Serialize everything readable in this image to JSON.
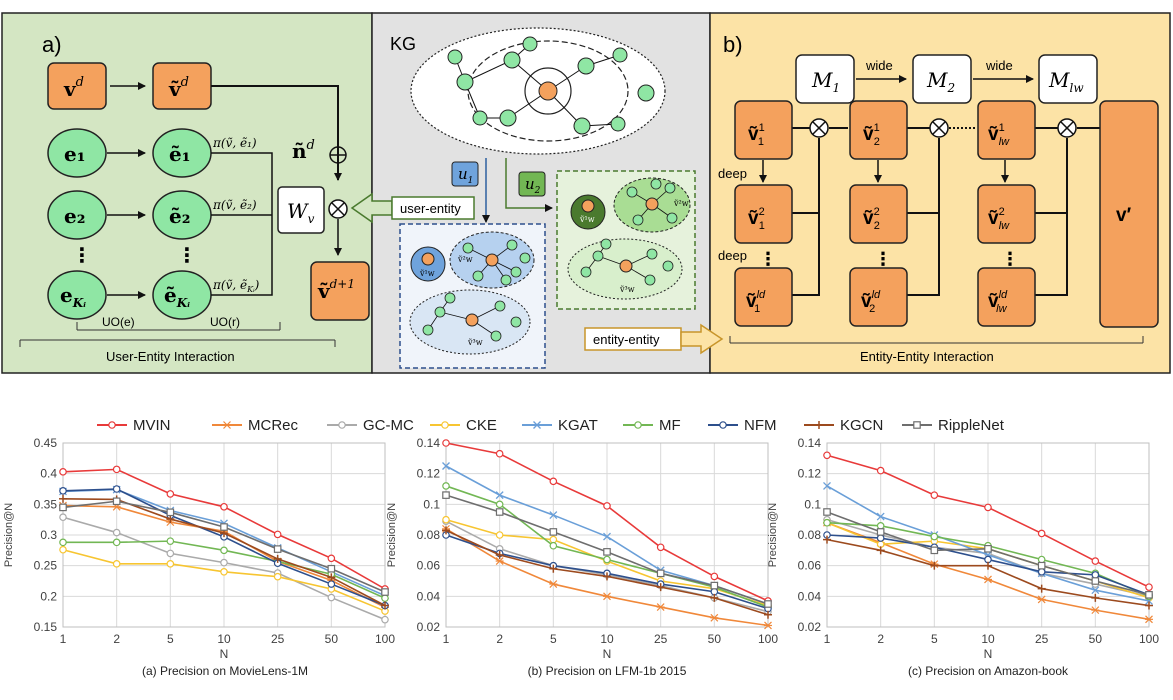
{
  "colors": {
    "MVIN": "#e83a3a",
    "MCRec": "#f0883a",
    "GC-MC": "#aaaaaa",
    "CKE": "#f7c531",
    "KGAT": "#6a9fd8",
    "MF": "#72b754",
    "NFM": "#2d4f8c",
    "KGCN": "#9c4a1e",
    "RippleNet": "#6e6e6e",
    "panel_a_bg": "#d4e6c3",
    "panel_kg_bg": "#e2e2e2",
    "panel_b_bg": "#fce3a6",
    "orange_node": "#f4a15d",
    "green_node": "#8fe6a4",
    "blue_box": "#6fa3dc"
  },
  "diagram": {
    "panel_a": {
      "label": "a)",
      "nodes": {
        "vd": "v",
        "vd_sup": "d",
        "vt": "ṽ",
        "vt_sup": "d",
        "e1": "e₁",
        "e2": "e₂",
        "eK": "e",
        "eK_sub": "Kᵢ",
        "et1": "ẽ₁",
        "et2": "ẽ₂",
        "etK": "ẽ",
        "etK_sub": "Kᵢ",
        "out": "ṽ",
        "out_sup": "d+1",
        "wv": "W",
        "wv_sub": "v",
        "nd": "ñ",
        "nd_sup": "d"
      },
      "pi1": "π(ṽ, ẽ₁)",
      "pi2": "π(ṽ, ẽ₂)",
      "piK": "π(ṽ, ẽ",
      "piK_sub": "Kᵢ",
      "piK_end": ")",
      "uo_e": "UO(e)",
      "uo_r": "UO(r)",
      "footer": "User-Entity Interaction"
    },
    "panel_kg": {
      "label": "KG",
      "u1": "u",
      "u1_sub": "1",
      "u2": "u",
      "u2_sub": "2",
      "user_entity": "user-entity",
      "entity_entity": "entity-entity",
      "w1": "ṽ¹w",
      "w2": "ṽ²w",
      "w3": "ṽ³w"
    },
    "panel_b": {
      "label": "b)",
      "m1": "M",
      "m1_sub": "1",
      "m2": "M",
      "m2_sub": "2",
      "ml": "M",
      "ml_sub": "lw",
      "wide1": "wide",
      "wide2": "wide",
      "deep1": "deep",
      "deep2": "deep",
      "v11": "ṽ",
      "v11_sup": "1",
      "v11_sub": "1",
      "v21": "ṽ",
      "v21_sup": "1",
      "v21_sub": "2",
      "vl1": "ṽ",
      "vl1_sup": "1",
      "vl1_sub": "lw",
      "v12": "ṽ",
      "v12_sup": "2",
      "v12_sub": "1",
      "v22": "ṽ",
      "v22_sup": "2",
      "v22_sub": "2",
      "vl2": "ṽ",
      "vl2_sup": "2",
      "vl2_sub": "lw",
      "v1d": "ṽ",
      "v1d_sup": "ld",
      "v1d_sub": "1",
      "v2d": "ṽ",
      "v2d_sup": "ld",
      "v2d_sub": "2",
      "vld": "ṽ",
      "vld_sup": "ld",
      "vld_sub": "lw",
      "vprime": "v′",
      "footer": "Entity-Entity Interaction"
    }
  },
  "legend": [
    "MVIN",
    "MCRec",
    "GC-MC",
    "CKE",
    "KGAT",
    "MF",
    "NFM",
    "KGCN",
    "RippleNet"
  ],
  "chart_data": [
    {
      "type": "line",
      "title": "(a) Precision on MovieLens-1M",
      "xlabel": "N",
      "ylabel": "Precision@N",
      "categories": [
        "1",
        "2",
        "5",
        "10",
        "25",
        "50",
        "100"
      ],
      "ylim": [
        0.15,
        0.45
      ],
      "yticks": [
        "0.15",
        "0.2",
        "0.25",
        "0.3",
        "0.35",
        "0.4",
        "0.45"
      ],
      "grid": true,
      "series": [
        {
          "name": "MVIN",
          "values": [
            0.403,
            0.407,
            0.367,
            0.346,
            0.301,
            0.262,
            0.212
          ]
        },
        {
          "name": "MCRec",
          "values": [
            0.348,
            0.346,
            0.321,
            0.306,
            0.257,
            0.226,
            0.182
          ]
        },
        {
          "name": "GC-MC",
          "values": [
            0.329,
            0.304,
            0.27,
            0.255,
            0.238,
            0.198,
            0.162
          ]
        },
        {
          "name": "CKE",
          "values": [
            0.276,
            0.253,
            0.253,
            0.24,
            0.232,
            0.212,
            0.176
          ]
        },
        {
          "name": "KGAT",
          "values": [
            0.371,
            0.374,
            0.34,
            0.319,
            0.279,
            0.24,
            0.201
          ]
        },
        {
          "name": "MF",
          "values": [
            0.288,
            0.288,
            0.29,
            0.275,
            0.257,
            0.236,
            0.197
          ]
        },
        {
          "name": "NFM",
          "values": [
            0.372,
            0.375,
            0.332,
            0.297,
            0.254,
            0.22,
            0.185
          ]
        },
        {
          "name": "KGCN",
          "values": [
            0.359,
            0.358,
            0.326,
            0.303,
            0.261,
            0.231,
            0.185
          ]
        },
        {
          "name": "RippleNet",
          "values": [
            0.345,
            0.355,
            0.337,
            0.313,
            0.277,
            0.245,
            0.207
          ]
        }
      ]
    },
    {
      "type": "line",
      "title": "(b) Precision on LFM-1b 2015",
      "xlabel": "N",
      "ylabel": "Precision@N",
      "categories": [
        "1",
        "2",
        "5",
        "10",
        "25",
        "50",
        "100"
      ],
      "ylim": [
        0.02,
        0.14
      ],
      "yticks": [
        "0.02",
        "0.04",
        "0.06",
        "0.08",
        "0.1",
        "0.12",
        "0.14"
      ],
      "grid": true,
      "series": [
        {
          "name": "MVIN",
          "values": [
            0.14,
            0.133,
            0.115,
            0.099,
            0.072,
            0.053,
            0.037
          ]
        },
        {
          "name": "MCRec",
          "values": [
            0.084,
            0.063,
            0.048,
            0.04,
            0.033,
            0.026,
            0.021
          ]
        },
        {
          "name": "GC-MC",
          "values": [
            0.089,
            0.071,
            0.06,
            0.054,
            0.047,
            0.039,
            0.03
          ]
        },
        {
          "name": "CKE",
          "values": [
            0.09,
            0.08,
            0.077,
            0.063,
            0.05,
            0.045,
            0.034
          ]
        },
        {
          "name": "KGAT",
          "values": [
            0.125,
            0.106,
            0.093,
            0.079,
            0.057,
            0.047,
            0.035
          ]
        },
        {
          "name": "MF",
          "values": [
            0.112,
            0.1,
            0.073,
            0.064,
            0.055,
            0.046,
            0.033
          ]
        },
        {
          "name": "NFM",
          "values": [
            0.08,
            0.068,
            0.06,
            0.055,
            0.048,
            0.043,
            0.032
          ]
        },
        {
          "name": "KGCN",
          "values": [
            0.083,
            0.067,
            0.058,
            0.053,
            0.046,
            0.039,
            0.028
          ]
        },
        {
          "name": "RippleNet",
          "values": [
            0.106,
            0.095,
            0.082,
            0.069,
            0.055,
            0.047,
            0.035
          ]
        }
      ]
    },
    {
      "type": "line",
      "title": "(c) Precision on Amazon-book",
      "xlabel": "N",
      "ylabel": "Precision@N",
      "categories": [
        "1",
        "2",
        "5",
        "10",
        "25",
        "50",
        "100"
      ],
      "ylim": [
        0.02,
        0.14
      ],
      "yticks": [
        "0.02",
        "0.04",
        "0.06",
        "0.08",
        "0.1",
        "0.12",
        "0.14"
      ],
      "grid": true,
      "series": [
        {
          "name": "MVIN",
          "values": [
            0.132,
            0.122,
            0.106,
            0.098,
            0.081,
            0.063,
            0.046
          ]
        },
        {
          "name": "MCRec",
          "values": [
            0.088,
            0.075,
            0.061,
            0.051,
            0.038,
            0.031,
            0.025
          ]
        },
        {
          "name": "GC-MC",
          "values": [
            0.09,
            0.08,
            0.072,
            0.068,
            0.055,
            0.048,
            0.04
          ]
        },
        {
          "name": "CKE",
          "values": [
            0.088,
            0.074,
            0.076,
            0.071,
            0.06,
            0.05,
            0.039
          ]
        },
        {
          "name": "KGAT",
          "values": [
            0.112,
            0.092,
            0.08,
            0.067,
            0.055,
            0.044,
            0.037
          ]
        },
        {
          "name": "MF",
          "values": [
            0.088,
            0.086,
            0.079,
            0.073,
            0.064,
            0.055,
            0.04
          ]
        },
        {
          "name": "NFM",
          "values": [
            0.08,
            0.078,
            0.072,
            0.064,
            0.056,
            0.054,
            0.041
          ]
        },
        {
          "name": "KGCN",
          "values": [
            0.077,
            0.07,
            0.06,
            0.06,
            0.045,
            0.039,
            0.034
          ]
        },
        {
          "name": "RippleNet",
          "values": [
            0.095,
            0.082,
            0.07,
            0.071,
            0.06,
            0.05,
            0.041
          ]
        }
      ]
    }
  ]
}
